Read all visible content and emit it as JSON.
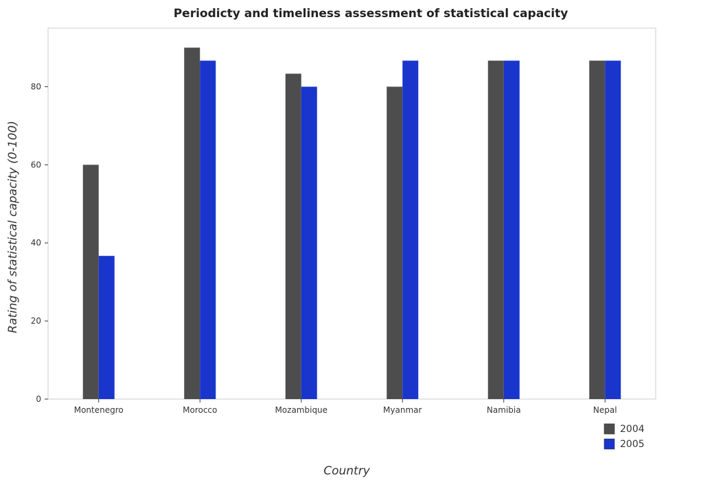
{
  "chart_data": {
    "type": "bar",
    "title": "Periodicty and timeliness assessment of statistical capacity",
    "xlabel": "Country",
    "ylabel": "Rating of statistical capacity (0-100)",
    "categories": [
      "Montenegro",
      "Morocco",
      "Mozambique",
      "Myanmar",
      "Namibia",
      "Nepal"
    ],
    "series": [
      {
        "name": "2004",
        "color": "#4d4d4d",
        "values": [
          60,
          90,
          83.33,
          80,
          86.67,
          86.67
        ]
      },
      {
        "name": "2005",
        "color": "#1a35cc",
        "values": [
          36.67,
          86.67,
          80,
          86.67,
          86.67,
          86.67
        ]
      }
    ],
    "ylim": [
      0,
      95
    ],
    "yticks": [
      0,
      20,
      40,
      60,
      80
    ],
    "grid": false,
    "legend_position": "bottom-right"
  }
}
